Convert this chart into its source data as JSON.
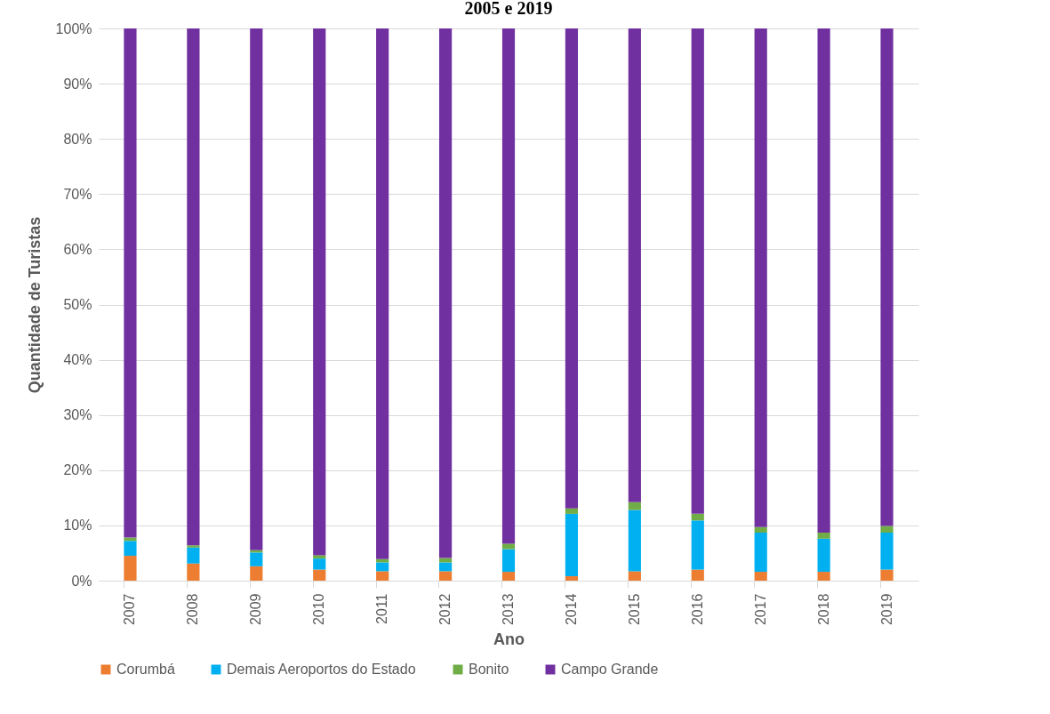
{
  "chart_data": {
    "type": "bar",
    "title": "2005 e 2019",
    "xlabel": "Ano",
    "ylabel": "Quantidade de Turistas",
    "stacked": true,
    "legend": "bottom",
    "grid": "y",
    "categories": [
      "2007",
      "2008",
      "2009",
      "2010",
      "2011",
      "2012",
      "2013",
      "2014",
      "2015",
      "2016",
      "2017",
      "2018",
      "2019"
    ],
    "ylim": [
      0,
      100
    ],
    "yticks": [
      {
        "value": 0,
        "label": "0%"
      },
      {
        "value": 10,
        "label": "10%"
      },
      {
        "value": 20,
        "label": "20%"
      },
      {
        "value": 30,
        "label": "30%"
      },
      {
        "value": 40,
        "label": "40%"
      },
      {
        "value": 50,
        "label": "50%"
      },
      {
        "value": 60,
        "label": "60%"
      },
      {
        "value": 70,
        "label": "70%"
      },
      {
        "value": 80,
        "label": "80%"
      },
      {
        "value": 90,
        "label": "90%"
      },
      {
        "value": 100,
        "label": "100%"
      }
    ],
    "series": [
      {
        "name": "Corumbá",
        "color": "#ed7d31",
        "values": [
          4.5,
          3.1,
          2.6,
          2.0,
          1.7,
          1.7,
          1.6,
          0.8,
          1.7,
          2.0,
          1.6,
          1.6,
          2.0
        ]
      },
      {
        "name": "Demais Aeroportos do Estado",
        "color": "#00b0f0",
        "values": [
          2.7,
          2.9,
          2.5,
          2.0,
          1.6,
          1.6,
          4.1,
          11.3,
          11.1,
          8.9,
          7.1,
          6.0,
          6.7
        ]
      },
      {
        "name": "Bonito",
        "color": "#70ad47",
        "values": [
          0.6,
          0.4,
          0.4,
          0.6,
          0.6,
          0.8,
          1.0,
          1.0,
          1.4,
          1.2,
          1.0,
          1.1,
          1.2
        ]
      },
      {
        "name": "Campo Grande",
        "color": "#7030a0",
        "values": [
          92.2,
          93.6,
          94.5,
          95.4,
          96.1,
          95.9,
          93.3,
          86.9,
          85.8,
          87.9,
          90.3,
          91.3,
          90.1
        ]
      }
    ]
  }
}
